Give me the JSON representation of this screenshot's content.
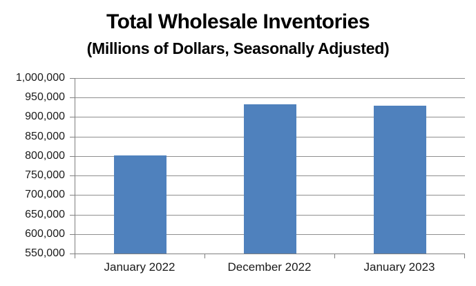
{
  "header": {
    "title": "Total Wholesale Inventories",
    "subtitle": "(Millions of Dollars, Seasonally Adjusted)"
  },
  "chart_data": {
    "type": "bar",
    "title": "Total Wholesale Inventories",
    "subtitle": "(Millions of Dollars, Seasonally Adjusted)",
    "categories": [
      "January 2022",
      "December 2022",
      "January 2023"
    ],
    "values": [
      802000,
      932000,
      929000
    ],
    "xlabel": "",
    "ylabel": "",
    "ylim": [
      550000,
      1000000
    ],
    "ytick_step": 50000,
    "ytick_labels": [
      "550,000",
      "600,000",
      "650,000",
      "700,000",
      "750,000",
      "800,000",
      "850,000",
      "900,000",
      "950,000",
      "1,000,000"
    ],
    "grid": true,
    "legend": false,
    "colors": {
      "bar": "#4f81bd",
      "gridline": "#8e8e8e",
      "axis": "#7f7f7f",
      "tick_text": "#1a1a1a",
      "title_text": "#000000",
      "background": "#ffffff"
    }
  }
}
